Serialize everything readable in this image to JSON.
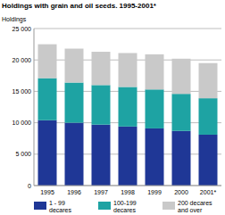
{
  "chart_data": {
    "type": "bar",
    "stacked": true,
    "title": "Holdings with grain and oil seeds. 1995-2001*",
    "y_label": "Holdings",
    "categories": [
      "1995",
      "1996",
      "1997",
      "1998",
      "1999",
      "2000",
      "2001*"
    ],
    "series": [
      {
        "name": "1 - 99 decares",
        "color": "#1f3796",
        "values": [
          10400,
          10000,
          9700,
          9400,
          9100,
          8700,
          8100
        ]
      },
      {
        "name": "100-199 decares",
        "color": "#1ea3a3",
        "values": [
          6700,
          6400,
          6300,
          6300,
          6200,
          5900,
          5800
        ]
      },
      {
        "name": "200 decares and over",
        "color": "#c9c9c9",
        "values": [
          5400,
          5400,
          5300,
          5400,
          5600,
          5600,
          5600
        ]
      }
    ],
    "ylim": [
      0,
      25000
    ],
    "yticks": [
      0,
      {
        "value": 5000,
        "label": "5 000"
      },
      {
        "value": 10000,
        "label": "10 000"
      },
      {
        "value": 15000,
        "label": "15 000"
      },
      {
        "value": 20000,
        "label": "20 000"
      },
      {
        "value": 25000,
        "label": "25 000"
      }
    ],
    "grid": true,
    "legend": "bottom"
  }
}
